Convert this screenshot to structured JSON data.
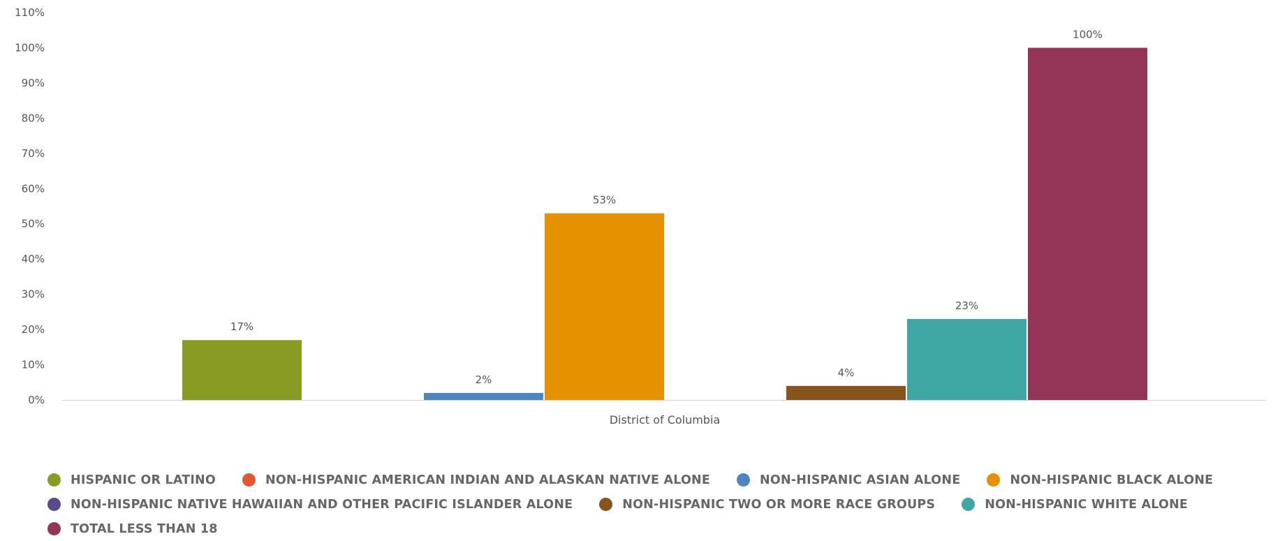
{
  "chart_data": {
    "type": "bar",
    "categories": [
      "District of Columbia"
    ],
    "yticks": [
      "0%",
      "10%",
      "20%",
      "30%",
      "40%",
      "50%",
      "60%",
      "70%",
      "80%",
      "90%",
      "100%",
      "110%"
    ],
    "ylim": [
      0,
      110
    ],
    "series": [
      {
        "name": "Hispanic or Latino",
        "values": [
          17
        ],
        "label": "17%",
        "color": "#8a9b24"
      },
      {
        "name": "Non-Hispanic American Indian and Alaskan Native Alone",
        "values": [
          0
        ],
        "label": "",
        "color": "#e4572e"
      },
      {
        "name": "Non-Hispanic Asian Alone",
        "values": [
          2
        ],
        "label": "2%",
        "color": "#4c86bd"
      },
      {
        "name": "Non-Hispanic Black Alone",
        "values": [
          53
        ],
        "label": "53%",
        "color": "#e69100"
      },
      {
        "name": "Non-Hispanic Native Hawaiian and Other Pacific Islander Alone",
        "values": [
          0
        ],
        "label": "",
        "color": "#5b4a8b"
      },
      {
        "name": "Non-Hispanic Two or More Race Groups",
        "values": [
          4
        ],
        "label": "4%",
        "color": "#87541c"
      },
      {
        "name": "Non-Hispanic White Alone",
        "values": [
          23
        ],
        "label": "23%",
        "color": "#3ea7a3"
      },
      {
        "name": "Total less than 18",
        "values": [
          100
        ],
        "label": "100%",
        "color": "#943557"
      }
    ],
    "legend_position": "bottom",
    "grid": false
  }
}
